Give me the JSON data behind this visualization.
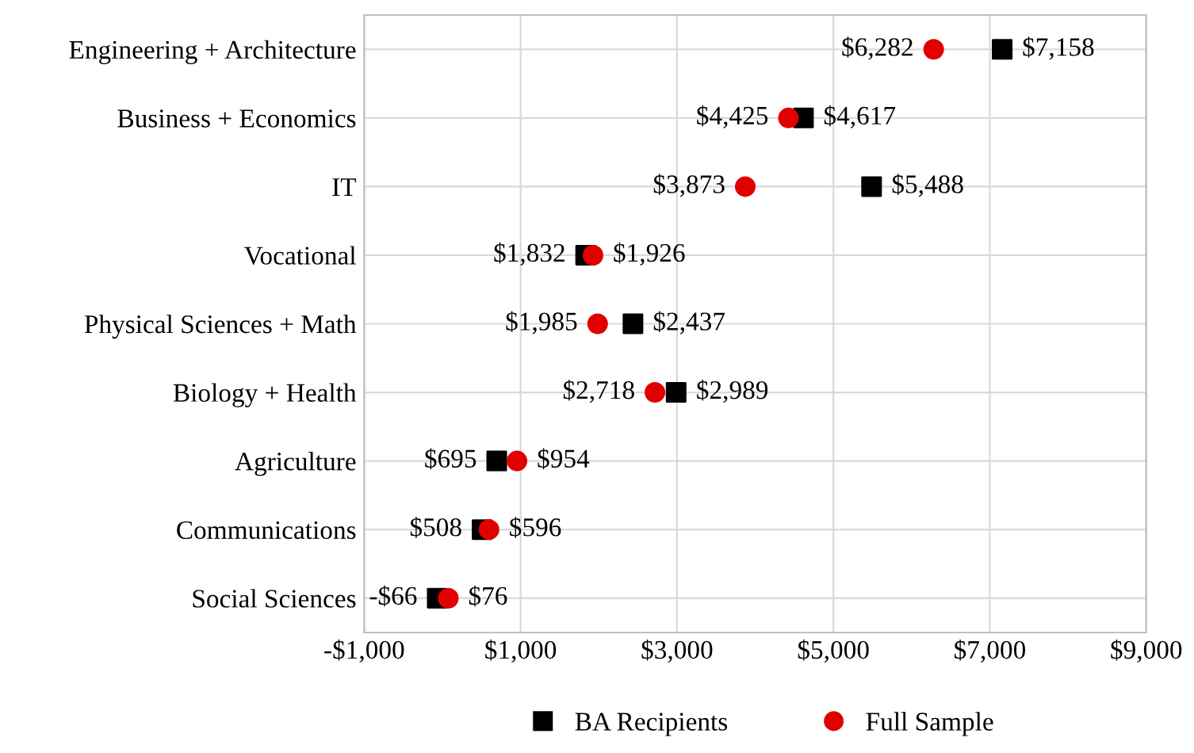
{
  "chart_data": {
    "type": "scatter",
    "orientation": "horizontal",
    "categories": [
      "Engineering + Architecture",
      "Business + Economics",
      "IT",
      "Vocational",
      "Physical Sciences + Math",
      "Biology + Health",
      "Agriculture",
      "Communications",
      "Social Sciences"
    ],
    "series": [
      {
        "name": "BA Recipients",
        "color": "#000000",
        "marker": "square",
        "values": [
          7158,
          4617,
          5488,
          1832,
          2437,
          2989,
          695,
          508,
          -66
        ],
        "value_labels": [
          "$7,158",
          "$4,617",
          "$5,488",
          "$1,832",
          "$2,437",
          "$2,989",
          "$695",
          "$508",
          "-$66"
        ]
      },
      {
        "name": "Full Sample",
        "color": "#e00000",
        "marker": "circle",
        "values": [
          6282,
          4425,
          3873,
          1926,
          1985,
          2718,
          954,
          596,
          76
        ],
        "value_labels": [
          "$6,282",
          "$4,425",
          "$3,873",
          "$1,926",
          "$1,985",
          "$2,718",
          "$954",
          "$596",
          "$76"
        ]
      }
    ],
    "xlim": [
      -1000,
      9000
    ],
    "xticks": [
      {
        "value": -1000,
        "label": "-$1,000"
      },
      {
        "value": 1000,
        "label": "$1,000"
      },
      {
        "value": 3000,
        "label": "$3,000"
      },
      {
        "value": 5000,
        "label": "$5,000"
      },
      {
        "value": 7000,
        "label": "$7,000"
      },
      {
        "value": 9000,
        "label": "$9,000"
      }
    ],
    "grid": true,
    "legend": "bottom"
  }
}
